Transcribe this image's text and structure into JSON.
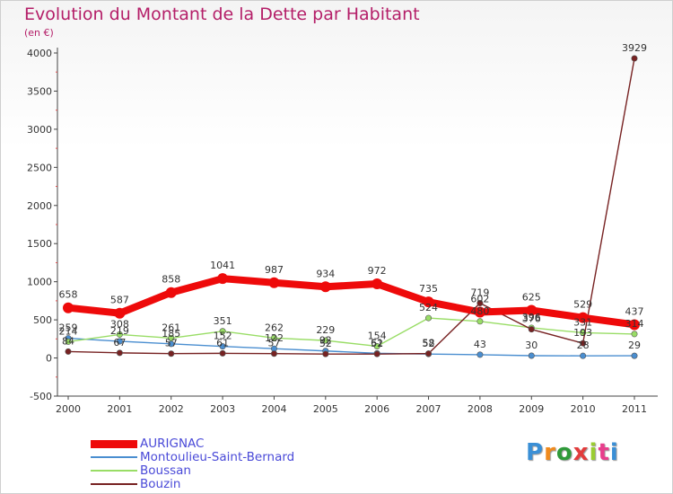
{
  "chart_data": {
    "type": "line",
    "title": "Evolution du Montant de la Dette par Habitant",
    "subtitle": "(en €)",
    "x": [
      "2000",
      "2001",
      "2002",
      "2003",
      "2004",
      "2005",
      "2006",
      "2007",
      "2008",
      "2009",
      "2010",
      "2011"
    ],
    "ylim": [
      -500,
      4000
    ],
    "yticks": [
      "-500",
      "0",
      "500",
      "1000",
      "1500",
      "2000",
      "2500",
      "3000",
      "3500",
      "4000"
    ],
    "grid": false,
    "legend_position": "bottom-left",
    "series": [
      {
        "name": "AURIGNAC",
        "color": "#ee0a0a",
        "values": [
          658,
          587,
          858,
          1041,
          987,
          934,
          972,
          735,
          602,
          625,
          529,
          437
        ],
        "labels": [
          "658",
          "587",
          "858",
          "1041",
          "987",
          "934",
          "972",
          "735",
          "602",
          "625",
          "529",
          "437"
        ]
      },
      {
        "name": "Montoulieu-Saint-Bernard",
        "color": "#4a8ed0",
        "values": [
          259,
          219,
          185,
          152,
          122,
          92,
          61,
          52,
          43,
          30,
          28,
          29
        ],
        "labels": [
          "259",
          "219",
          "185",
          "152",
          "122",
          "92",
          "61",
          "52",
          "43",
          "30",
          "28",
          "29"
        ]
      },
      {
        "name": "Boussan",
        "color": "#99dd66",
        "values": [
          214,
          308,
          261,
          351,
          262,
          229,
          154,
          524,
          480,
          396,
          331,
          314
        ],
        "labels": [
          "214",
          "308",
          "261",
          "351",
          "262",
          "229",
          "154",
          "524",
          "480",
          "396",
          "331",
          "314"
        ]
      },
      {
        "name": "Bouzin",
        "color": "#772222",
        "values": [
          84,
          67,
          57,
          61,
          57,
          52,
          52,
          58,
          719,
          376,
          193,
          3929
        ],
        "labels": [
          "84",
          "67",
          "57",
          "61",
          "57",
          "52",
          "52",
          "58",
          "719",
          "376",
          "193",
          "3929"
        ]
      }
    ]
  },
  "legend": {
    "items": [
      "AURIGNAC",
      "Montoulieu-Saint-Bernard",
      "Boussan",
      "Bouzin"
    ]
  },
  "logo": {
    "letters": [
      "P",
      "r",
      "o",
      "x",
      "i",
      "t",
      "i"
    ],
    "colors": [
      "#3a8fd6",
      "#f08a1c",
      "#2f9a3a",
      "#e23c3c",
      "#9acd32",
      "#e83e8c",
      "#3a8fd6"
    ]
  }
}
